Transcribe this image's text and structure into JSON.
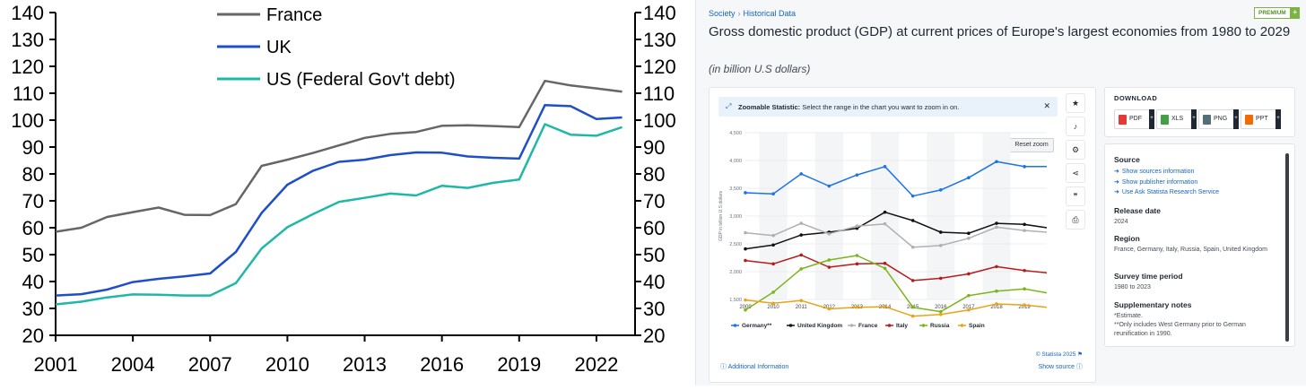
{
  "chart_data": [
    {
      "type": "line",
      "title": "",
      "xlabel": "",
      "ylabel": "",
      "x": [
        2001,
        2002,
        2003,
        2004,
        2005,
        2006,
        2007,
        2008,
        2009,
        2010,
        2011,
        2012,
        2013,
        2014,
        2015,
        2016,
        2017,
        2018,
        2019,
        2020,
        2021,
        2022,
        2023
      ],
      "xticks": [
        2001,
        2004,
        2007,
        2010,
        2013,
        2016,
        2019,
        2022
      ],
      "yticks": [
        20,
        30,
        40,
        50,
        60,
        70,
        80,
        90,
        100,
        110,
        120,
        130,
        140
      ],
      "ylim": [
        20,
        140
      ],
      "xlim": [
        2001,
        2023.5
      ],
      "legend_position": "top-center",
      "series": [
        {
          "name": "France",
          "color": "#666666",
          "values": [
            58.5,
            60,
            64,
            65.8,
            67.5,
            64.8,
            64.7,
            68.8,
            83,
            85.3,
            87.8,
            90.6,
            93.4,
            94.9,
            95.6,
            97.9,
            98.1,
            97.8,
            97.4,
            114.6,
            112.9,
            111.8,
            110.6
          ]
        },
        {
          "name": "UK",
          "color": "#1f4fc7",
          "values": [
            34.8,
            35.3,
            37.0,
            39.8,
            41.0,
            41.9,
            43.0,
            51.0,
            65.5,
            76.0,
            81.2,
            84.5,
            85.3,
            87.0,
            88.0,
            87.9,
            86.5,
            86.0,
            85.7,
            105.6,
            105.2,
            100.4,
            101.0
          ]
        },
        {
          "name": "US (Federal Gov't debt)",
          "color": "#1fb8a6",
          "values": [
            31.5,
            32.5,
            34.1,
            35.2,
            35.1,
            34.8,
            34.8,
            39.4,
            52.3,
            60.2,
            65.1,
            69.6,
            71.1,
            72.7,
            72.0,
            75.6,
            74.8,
            76.7,
            77.9,
            98.5,
            94.6,
            94.2,
            97.4
          ]
        }
      ]
    },
    {
      "type": "line",
      "title": "Gross domestic product (GDP) at current prices of Europe's largest economies from 1980 to 2029",
      "subtitle": "(in billion U.S dollars)",
      "xlabel": "",
      "ylabel": "GDP in billion U.S dollars",
      "x": [
        2009,
        2010,
        2011,
        2012,
        2013,
        2014,
        2015,
        2016,
        2017,
        2018,
        2019,
        2019.8
      ],
      "xticks": [
        2009,
        2010,
        2011,
        2012,
        2013,
        2014,
        2015,
        2016,
        2017,
        2018,
        2019
      ],
      "yticks": [
        1500,
        2000,
        2500,
        3000,
        3500,
        4000,
        4500
      ],
      "ytick_labels": [
        "1,500",
        "2,000",
        "2,500",
        "3,000",
        "3,500",
        "4,000",
        "4,500"
      ],
      "ylim": [
        1500,
        4500
      ],
      "xlim": [
        2009,
        2019.8
      ],
      "legend_position": "bottom",
      "grid": true,
      "series": [
        {
          "name": "Germany**",
          "color": "#1a73e8",
          "values": [
            3420,
            3400,
            3760,
            3540,
            3740,
            3890,
            3360,
            3470,
            3690,
            3980,
            3890,
            3890
          ]
        },
        {
          "name": "United Kingdom",
          "color": "#111111",
          "values": [
            2410,
            2480,
            2660,
            2710,
            2780,
            3070,
            2920,
            2710,
            2690,
            2870,
            2850,
            2790
          ]
        },
        {
          "name": "France",
          "color": "#b0b0b0",
          "values": [
            2700,
            2650,
            2870,
            2680,
            2820,
            2860,
            2440,
            2470,
            2600,
            2800,
            2740,
            2710
          ]
        },
        {
          "name": "Italy",
          "color": "#b71c1c",
          "values": [
            2200,
            2140,
            2300,
            2080,
            2140,
            2150,
            1840,
            1880,
            1960,
            2090,
            2020,
            1980
          ]
        },
        {
          "name": "Russia",
          "color": "#7cb518",
          "values": [
            1310,
            1630,
            2050,
            2210,
            2290,
            2060,
            1360,
            1280,
            1570,
            1650,
            1690,
            1620
          ]
        },
        {
          "name": "Spain",
          "color": "#e8a317",
          "values": [
            1490,
            1430,
            1480,
            1330,
            1360,
            1370,
            1200,
            1230,
            1310,
            1420,
            1400,
            1360
          ]
        }
      ]
    }
  ],
  "statista": {
    "breadcrumb": [
      "Society",
      "Historical Data"
    ],
    "breadcrumb_sep": "›",
    "premium": "PREMIUM",
    "premium_plus": "+",
    "zoom_label": "Zoomable Statistic:",
    "zoom_text": " Select the range in the chart you want to zoom in on.",
    "reset_zoom": "Reset zoom",
    "copyright": "© Statista 2025",
    "additional_info": "Additional Information",
    "show_source": "Show source",
    "download_title": "DOWNLOAD",
    "downloads": [
      {
        "label": "PDF",
        "color": "#e53935"
      },
      {
        "label": "XLS",
        "color": "#43a047"
      },
      {
        "label": "PNG",
        "color": "#546e7a"
      },
      {
        "label": "PPT",
        "color": "#ef6c00"
      }
    ],
    "source_title": "Source",
    "source_links": [
      "Show sources information",
      "Show publisher information",
      "Use Ask Statista Research Service"
    ],
    "release_title": "Release date",
    "release_value": "2024",
    "region_title": "Region",
    "region_value": "France, Germany, Italy, Russia, Spain, United Kingdom",
    "survey_title": "Survey time period",
    "survey_value": "1980 to 2023",
    "supp_title": "Supplementary notes",
    "supp_1": "*Estimate.",
    "supp_2": "**Only includes West Germany prior to German reunification in 1990."
  }
}
